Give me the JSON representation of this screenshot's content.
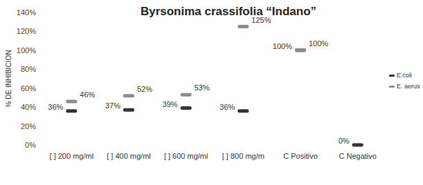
{
  "chart_data": {
    "type": "line",
    "title": "Byrsonima crassifolia “Indano”",
    "y_label": "% DE INHIBICION",
    "categories": [
      "[ ] 200 mg/ml",
      "[ ] 400 mg/ml",
      "[ ] 600 mg/ml",
      "[ ] 800 mg/m",
      "C Positivo",
      "C Negativo"
    ],
    "series": [
      {
        "name": "E.coli",
        "color": "#333333",
        "marker": "dash",
        "line_style": "none",
        "values": [
          36,
          37,
          39,
          36,
          100,
          0
        ],
        "value_labels": [
          "36%",
          "37%",
          "39%",
          "36%",
          "100%",
          "0%"
        ]
      },
      {
        "name": "E. aerus",
        "color": "#8c8c8c",
        "marker": "dash",
        "line_style": "none",
        "values": [
          46,
          52,
          53,
          125,
          100,
          null
        ],
        "value_labels": [
          "46%",
          "52%",
          "53%",
          "125%",
          "100%",
          null
        ]
      }
    ],
    "ylim": [
      0,
      140
    ],
    "yticks": [
      {
        "value": 0,
        "label": "0%"
      },
      {
        "value": 20,
        "label": "20%"
      },
      {
        "value": 40,
        "label": "40%"
      },
      {
        "value": 60,
        "label": "60%"
      },
      {
        "value": 80,
        "label": "80%"
      },
      {
        "value": 100,
        "label": "100%"
      },
      {
        "value": 120,
        "label": "120%"
      },
      {
        "value": 140,
        "label": "140%"
      }
    ],
    "grid": false,
    "legend": "right",
    "data_labels": true
  }
}
